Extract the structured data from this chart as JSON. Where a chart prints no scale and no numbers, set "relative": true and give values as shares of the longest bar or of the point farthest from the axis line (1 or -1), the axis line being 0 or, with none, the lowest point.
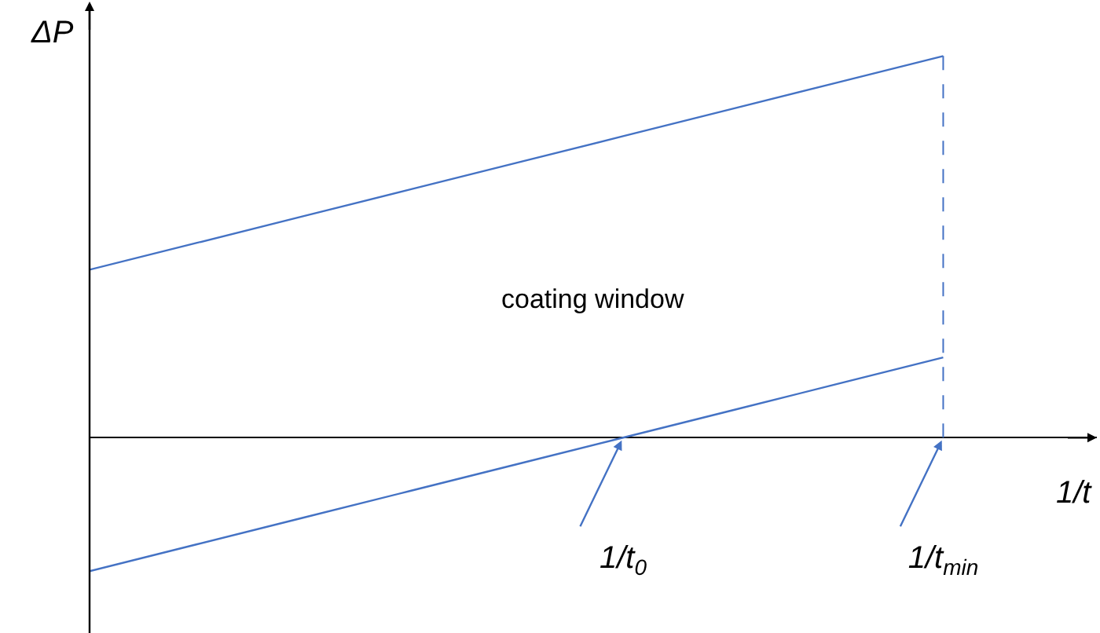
{
  "chart_data": {
    "type": "line",
    "relative": true,
    "xlabel": "1/t",
    "ylabel": "ΔP",
    "categories": [
      null,
      null,
      null,
      null,
      null,
      "1/t$_{0}$",
      null,
      null,
      "1/t$_{min}$"
    ],
    "series": [
      {
        "color": "#4472c4",
        "values": [
          0.44,
          0.51,
          0.58,
          0.65,
          0.72,
          0.79,
          0.86,
          0.93,
          1.0
        ]
      },
      {
        "color": "#4472c4",
        "values": [
          -0.35,
          -0.28,
          -0.21,
          -0.14,
          -0.07,
          0,
          0.07,
          0.14,
          0.21
        ]
      }
    ],
    "ref_lines": [
      {
        "axis": "x",
        "value": "1/t$_{min}$",
        "color": "#4472c4",
        "line_style": "dashed"
      }
    ],
    "annotations": [
      "coating window"
    ],
    "marker": "none",
    "line_style": "solid",
    "grid": false,
    "legend": false
  }
}
